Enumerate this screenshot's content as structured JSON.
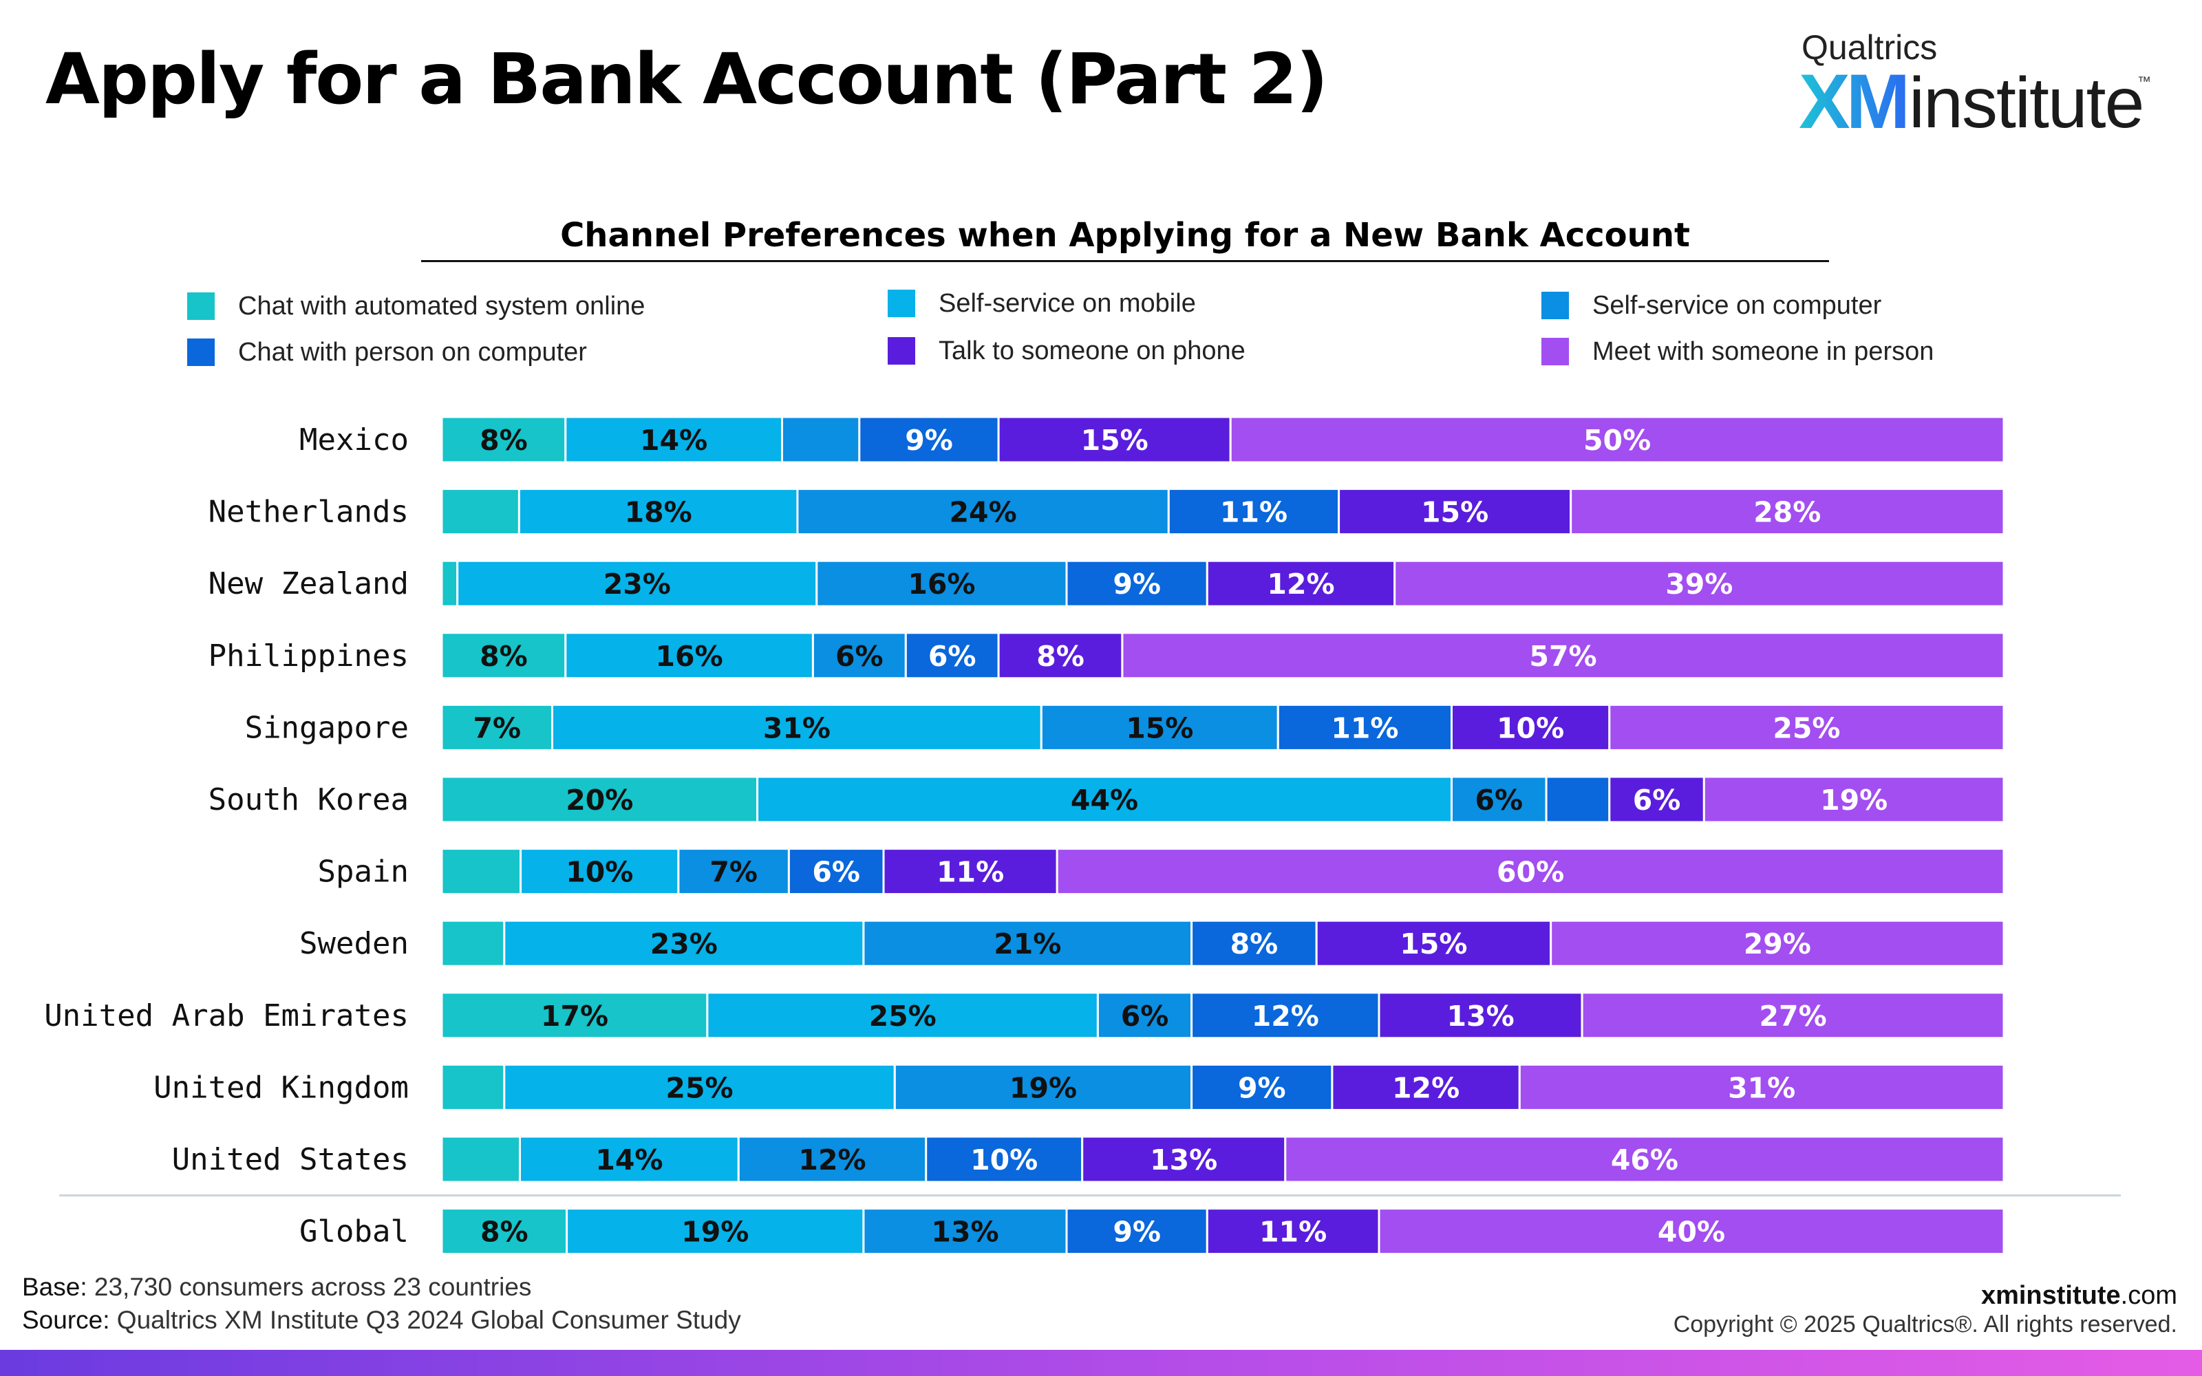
{
  "header": {
    "title": "Apply for a Bank Account (Part 2)",
    "logo": {
      "brand": "Qualtrics",
      "xm": "XM",
      "institute": "institute",
      "trademark": "™"
    }
  },
  "colors": {
    "chat_automated": "#16c4c9",
    "self_service_mobile": "#05b2ea",
    "self_service_computer": "#0a8fe2",
    "chat_person": "#0a67dc",
    "phone": "#5a1ddd",
    "in_person": "#a24ef0"
  },
  "chart_data": {
    "type": "bar",
    "orientation": "horizontal",
    "stacked": true,
    "title": "Channel Preferences when Applying for a New Bank Account",
    "xlabel": "",
    "ylabel": "",
    "xlim": [
      0,
      100
    ],
    "unit": "%",
    "legend_position": "top",
    "categories": [
      "Mexico",
      "Netherlands",
      "New Zealand",
      "Philippines",
      "Singapore",
      "South Korea",
      "Spain",
      "Sweden",
      "United Arab Emirates",
      "United Kingdom",
      "United States",
      "Global"
    ],
    "series": [
      {
        "name": "Chat with automated system online",
        "color": "#16c4c9",
        "values": [
          8,
          5,
          1,
          8,
          7,
          20,
          5,
          4,
          17,
          4,
          5,
          8
        ]
      },
      {
        "name": "Self-service on mobile",
        "color": "#05b2ea",
        "values": [
          14,
          18,
          23,
          16,
          31,
          44,
          10,
          23,
          25,
          25,
          14,
          19
        ]
      },
      {
        "name": "Self-service on computer",
        "color": "#0a8fe2",
        "values": [
          5,
          24,
          16,
          6,
          15,
          6,
          7,
          21,
          6,
          19,
          12,
          13
        ]
      },
      {
        "name": "Chat with person on computer",
        "color": "#0a67dc",
        "values": [
          9,
          11,
          9,
          6,
          11,
          4,
          6,
          8,
          12,
          9,
          10,
          9
        ]
      },
      {
        "name": "Talk to someone on phone",
        "color": "#5a1ddd",
        "values": [
          15,
          15,
          12,
          8,
          10,
          6,
          11,
          15,
          13,
          12,
          13,
          11
        ]
      },
      {
        "name": "Meet with someone in person",
        "color": "#a24ef0",
        "values": [
          50,
          28,
          39,
          57,
          25,
          19,
          60,
          29,
          27,
          31,
          46,
          40
        ]
      }
    ],
    "labeled_segments": [
      [
        true,
        true,
        false,
        true,
        true,
        true
      ],
      [
        false,
        true,
        true,
        true,
        true,
        true
      ],
      [
        false,
        true,
        true,
        true,
        true,
        true
      ],
      [
        true,
        true,
        true,
        true,
        true,
        true
      ],
      [
        true,
        true,
        true,
        true,
        true,
        true
      ],
      [
        true,
        true,
        true,
        false,
        true,
        true
      ],
      [
        false,
        true,
        true,
        true,
        true,
        true
      ],
      [
        false,
        true,
        true,
        true,
        true,
        true
      ],
      [
        true,
        true,
        true,
        true,
        true,
        true
      ],
      [
        false,
        true,
        true,
        true,
        true,
        true
      ],
      [
        false,
        true,
        true,
        true,
        true,
        true
      ],
      [
        true,
        true,
        true,
        true,
        true,
        true
      ]
    ]
  },
  "footer": {
    "base_label": "Base:",
    "base_text": "23,730 consumers across 23 countries",
    "source_label": "Source:",
    "source_text": "Qualtrics XM Institute Q3 2024 Global Consumer Study",
    "site_bold": "xminstitute",
    "site_rest": ".com",
    "copyright": "Copyright © 2025 Qualtrics®. All rights reserved."
  }
}
